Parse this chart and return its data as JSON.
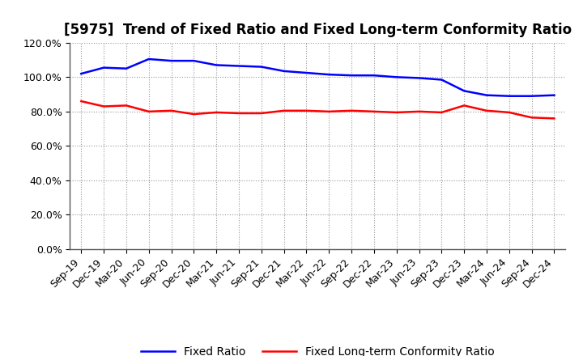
{
  "title": "[5975]  Trend of Fixed Ratio and Fixed Long-term Conformity Ratio",
  "x_labels": [
    "Sep-19",
    "Dec-19",
    "Mar-20",
    "Jun-20",
    "Sep-20",
    "Dec-20",
    "Mar-21",
    "Jun-21",
    "Sep-21",
    "Dec-21",
    "Mar-22",
    "Jun-22",
    "Sep-22",
    "Dec-22",
    "Mar-23",
    "Jun-23",
    "Sep-23",
    "Dec-23",
    "Mar-24",
    "Jun-24",
    "Sep-24",
    "Dec-24"
  ],
  "fixed_ratio": [
    102.0,
    105.5,
    105.0,
    110.5,
    109.5,
    109.5,
    107.0,
    106.5,
    106.0,
    103.5,
    102.5,
    101.5,
    101.0,
    101.0,
    100.0,
    99.5,
    98.5,
    92.0,
    89.5,
    89.0,
    89.0,
    89.5
  ],
  "fixed_lt_ratio": [
    86.0,
    83.0,
    83.5,
    80.0,
    80.5,
    78.5,
    79.5,
    79.0,
    79.0,
    80.5,
    80.5,
    80.0,
    80.5,
    80.0,
    79.5,
    80.0,
    79.5,
    83.5,
    80.5,
    79.5,
    76.5,
    76.0
  ],
  "fixed_ratio_color": "#0000FF",
  "fixed_lt_ratio_color": "#FF0000",
  "ylim": [
    0,
    120
  ],
  "yticks": [
    0,
    20,
    40,
    60,
    80,
    100,
    120
  ],
  "ytick_labels": [
    "0.0%",
    "20.0%",
    "40.0%",
    "60.0%",
    "80.0%",
    "100.0%",
    "120.0%"
  ],
  "legend_fixed_ratio": "Fixed Ratio",
  "legend_fixed_lt_ratio": "Fixed Long-term Conformity Ratio",
  "bg_color": "#FFFFFF",
  "plot_bg_color": "#FFFFFF",
  "grid_color": "#999999",
  "title_fontsize": 12,
  "axis_fontsize": 9,
  "legend_fontsize": 10,
  "line_width": 1.8
}
